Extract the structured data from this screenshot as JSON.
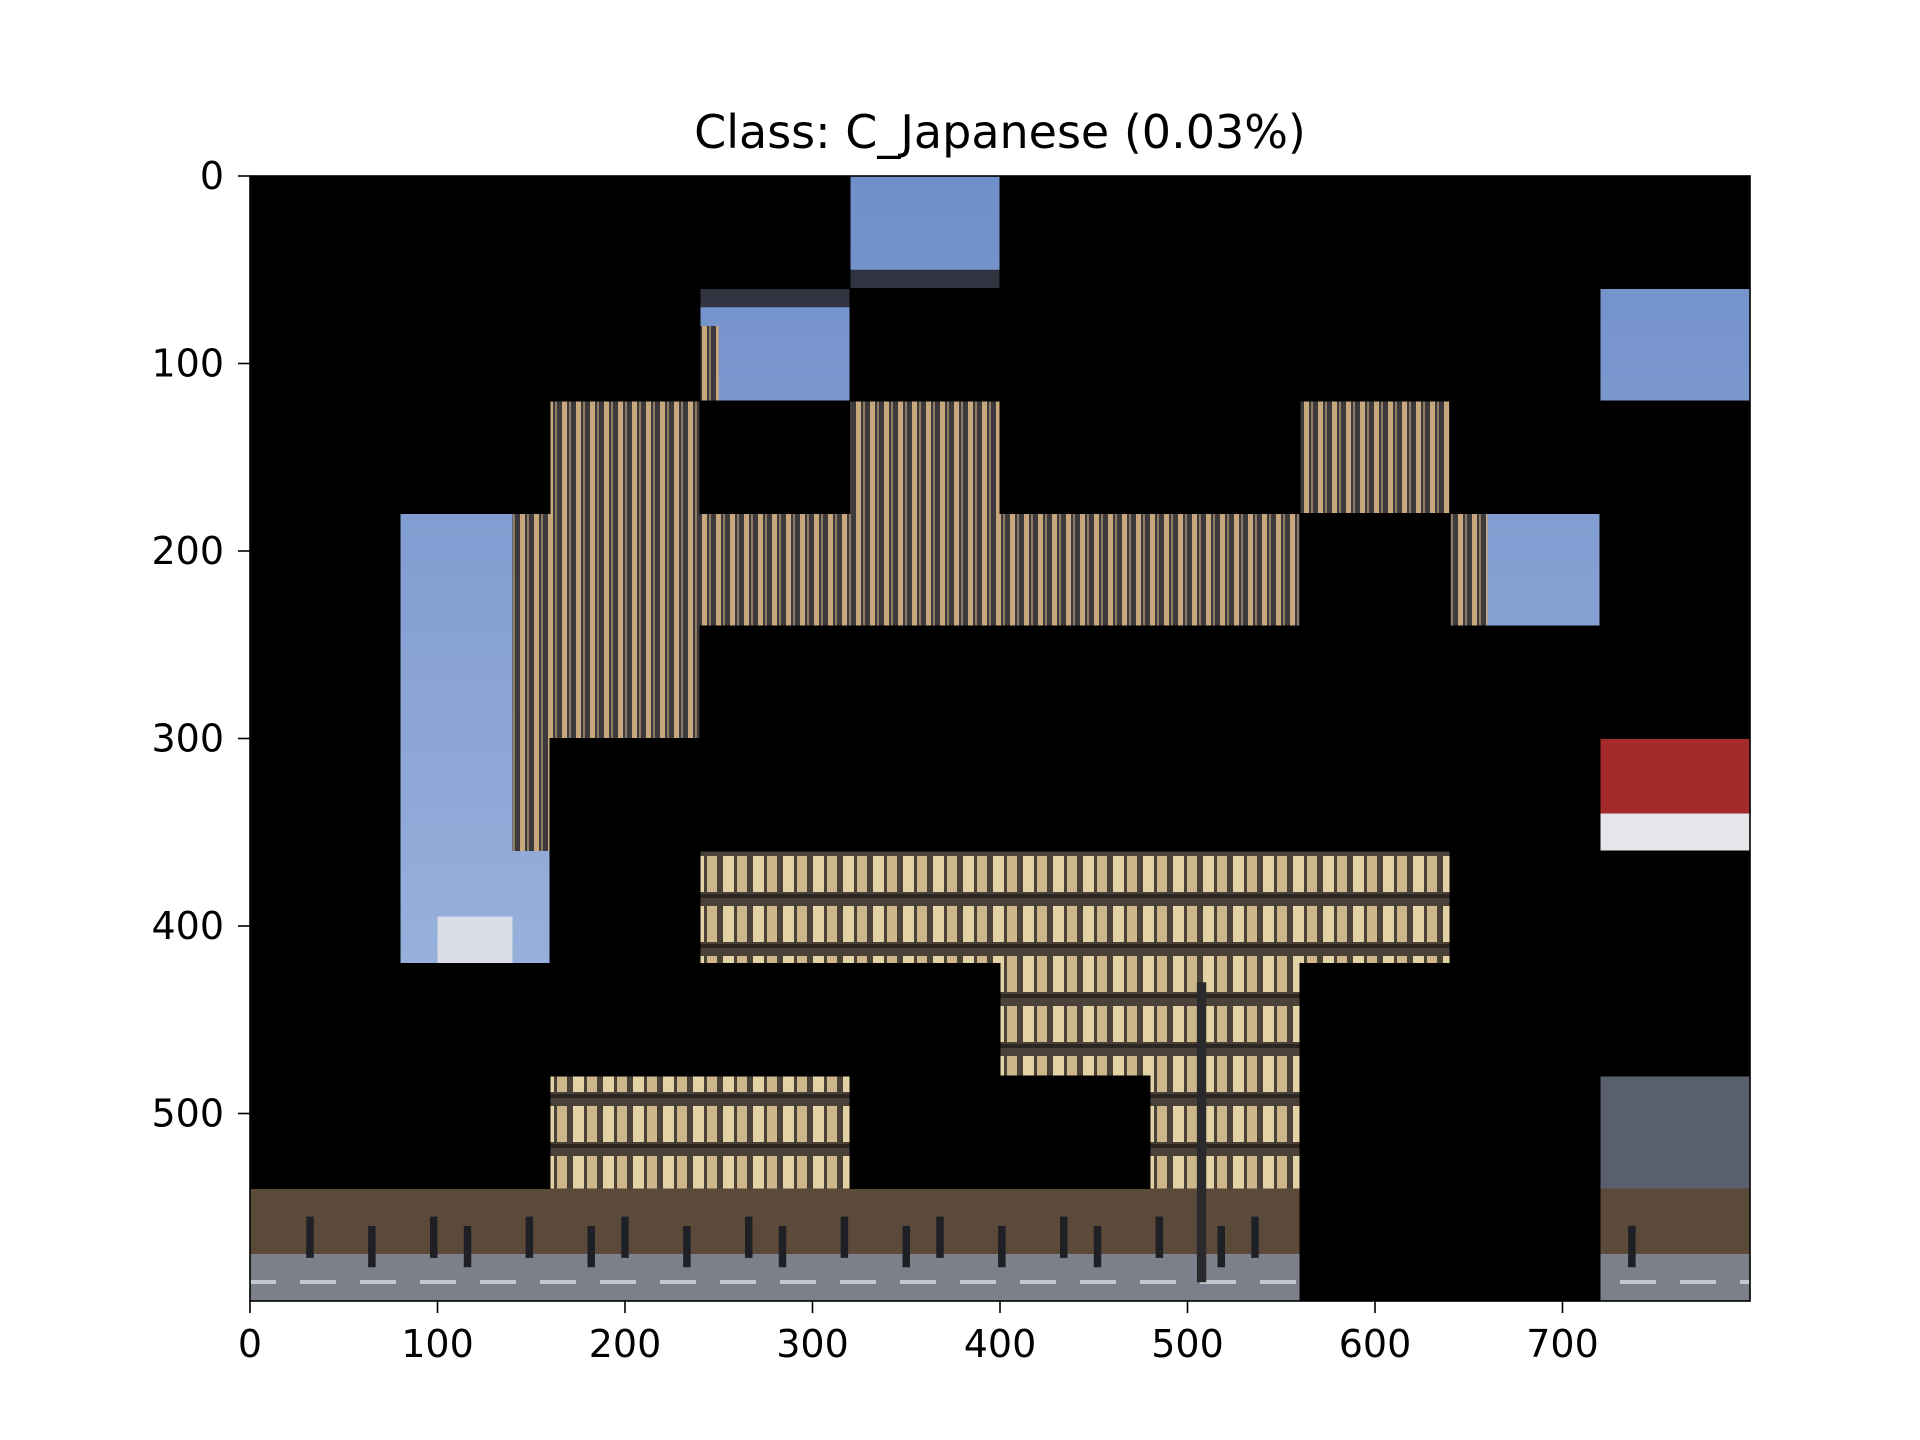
{
  "chart_data": {
    "type": "image",
    "title": "Class: C_Japanese (0.03%)",
    "xlabel": "",
    "ylabel": "",
    "xlim": [
      0,
      800
    ],
    "ylim": [
      600,
      0
    ],
    "grid": false,
    "x_ticks": [
      0,
      100,
      200,
      300,
      400,
      500,
      600,
      700
    ],
    "y_ticks": [
      0,
      100,
      200,
      300,
      400,
      500
    ],
    "image_size": [
      800,
      600
    ],
    "patch_size": [
      80,
      60
    ],
    "patch_grid_columns": 10,
    "patch_grid_rows": 10,
    "visible_patches": [
      [
        0,
        4
      ],
      [
        1,
        3
      ],
      [
        1,
        9
      ],
      [
        2,
        2
      ],
      [
        2,
        4
      ],
      [
        2,
        7
      ],
      [
        3,
        1
      ],
      [
        3,
        2
      ],
      [
        3,
        3
      ],
      [
        3,
        4
      ],
      [
        3,
        5
      ],
      [
        3,
        6
      ],
      [
        3,
        8
      ],
      [
        4,
        1
      ],
      [
        4,
        2
      ],
      [
        5,
        1
      ],
      [
        5,
        9
      ],
      [
        6,
        1
      ],
      [
        6,
        3
      ],
      [
        6,
        4
      ],
      [
        6,
        5
      ],
      [
        6,
        6
      ],
      [
        6,
        7
      ],
      [
        7,
        5
      ],
      [
        7,
        6
      ],
      [
        8,
        2
      ],
      [
        8,
        3
      ],
      [
        8,
        6
      ],
      [
        8,
        9
      ],
      [
        9,
        0
      ],
      [
        9,
        1
      ],
      [
        9,
        2
      ],
      [
        9,
        3
      ],
      [
        9,
        4
      ],
      [
        9,
        5
      ],
      [
        9,
        6
      ],
      [
        9,
        9
      ]
    ],
    "masked_color": "#000000",
    "image_description": "Modern multi-story building with vertical wooden louvers at dusk, street with pedestrians"
  }
}
